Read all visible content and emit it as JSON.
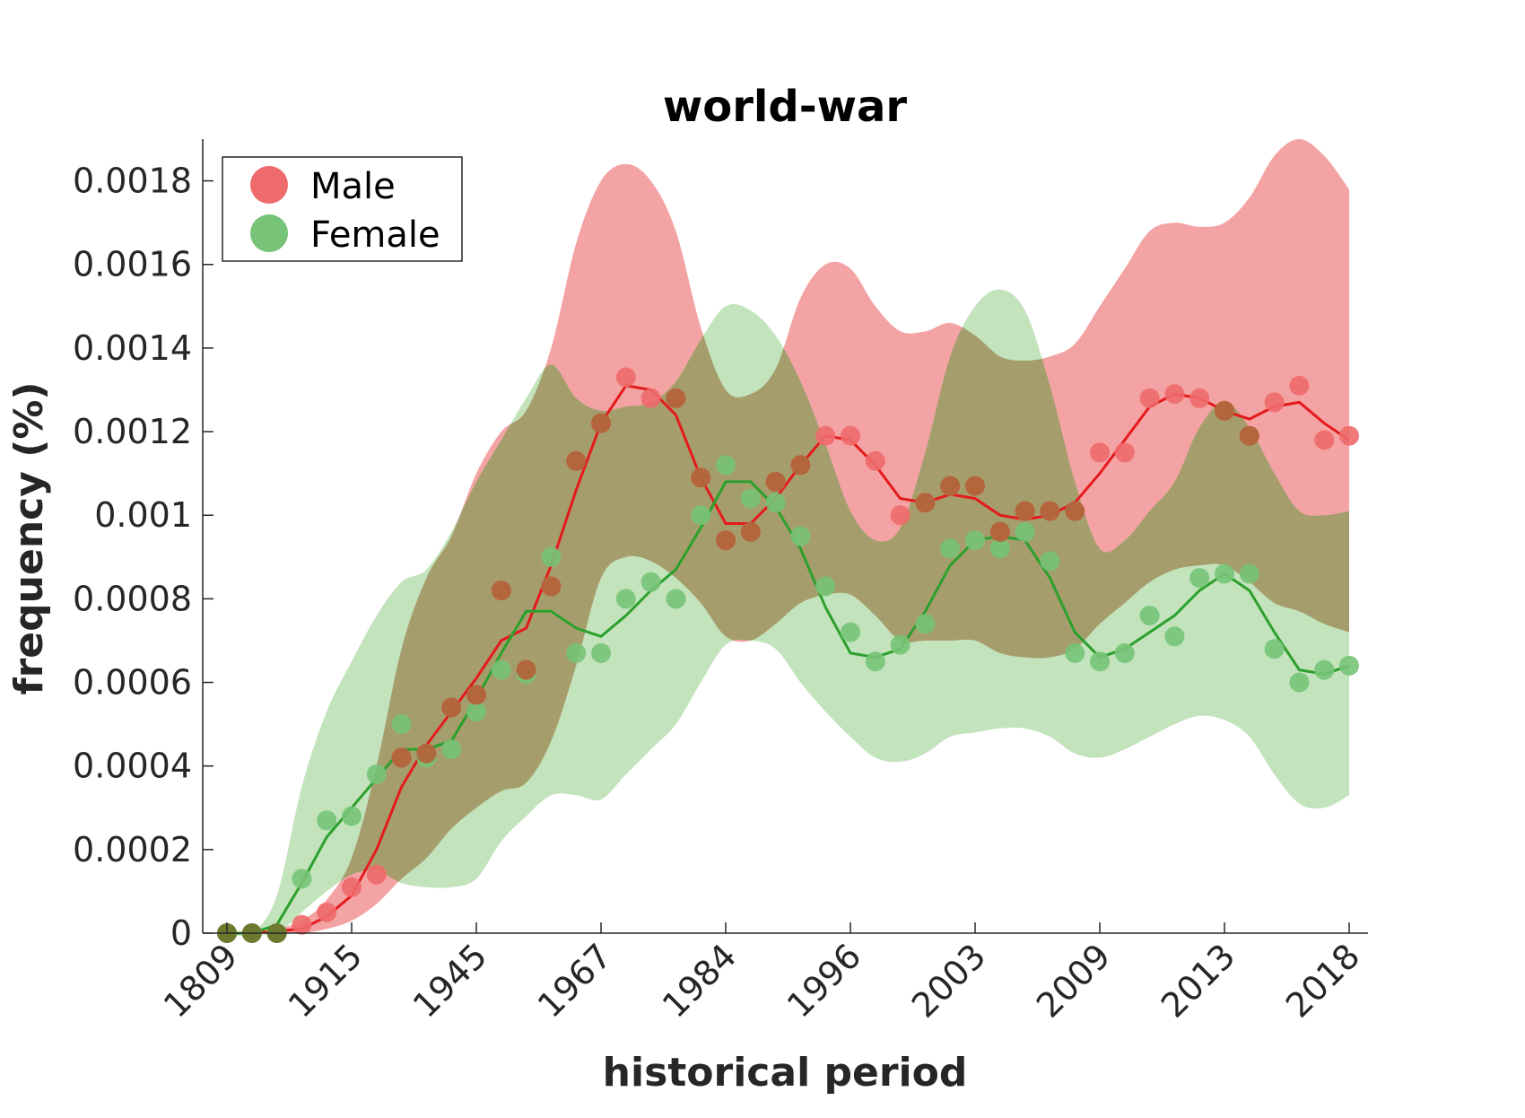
{
  "chart_data": {
    "type": "line",
    "title": "world-war",
    "xlabel": "historical period",
    "ylabel": "frequency (%)",
    "ylim": [
      0,
      0.0019
    ],
    "x_tick_labels": [
      "1809",
      "1915",
      "1945",
      "1967",
      "1984",
      "1996",
      "2003",
      "2009",
      "2013",
      "2018"
    ],
    "y_tick_labels": [
      "0",
      "0.0002",
      "0.0004",
      "0.0006",
      "0.0008",
      "0.001",
      "0.0012",
      "0.0014",
      "0.0016",
      "0.0018"
    ],
    "y_ticks": [
      0,
      0.0002,
      0.0004,
      0.0006,
      0.0008,
      0.001,
      0.0012,
      0.0014,
      0.0016,
      0.0018
    ],
    "x_tick_positions": [
      0,
      5,
      10,
      15,
      20,
      25,
      30,
      35,
      40,
      45
    ],
    "grid": false,
    "legend_position": "top-left",
    "series": [
      {
        "name": "Male",
        "color": "#e41a1c",
        "marker_color": "#ee6a6b",
        "band_color": "#f4a3a4",
        "points": [
          0,
          0,
          0,
          2e-05,
          5e-05,
          0.00011,
          0.00014,
          0.00042,
          0.00043,
          0.00054,
          0.00057,
          0.00082,
          0.00063,
          0.00083,
          0.00113,
          0.00122,
          0.00133,
          0.00128,
          0.00128,
          0.00109,
          0.00094,
          0.00096,
          0.00108,
          0.00112,
          0.00119,
          0.00119,
          0.00113,
          0.001,
          0.00103,
          0.00107,
          0.00107,
          0.00096,
          0.00101,
          0.00101,
          0.00101,
          0.00115,
          0.00115,
          0.00128,
          0.00129,
          0.00128,
          0.00125,
          0.00119,
          0.00127,
          0.00131,
          0.00118,
          0.00119
        ],
        "trend": [
          0,
          0,
          5e-06,
          1e-05,
          4e-05,
          9e-05,
          0.0002,
          0.00035,
          0.00045,
          0.00053,
          0.00061,
          0.0007,
          0.00073,
          0.00088,
          0.00106,
          0.00122,
          0.00131,
          0.0013,
          0.00124,
          0.00109,
          0.00098,
          0.00098,
          0.00104,
          0.00112,
          0.00119,
          0.00118,
          0.00112,
          0.00104,
          0.00103,
          0.00105,
          0.00104,
          0.001,
          0.00099,
          0.001,
          0.00103,
          0.0011,
          0.00118,
          0.00126,
          0.00129,
          0.00128,
          0.00125,
          0.00123,
          0.00126,
          0.00127,
          0.00122,
          0.00118
        ],
        "upper": [
          0,
          0,
          1e-05,
          3e-05,
          8e-05,
          0.00018,
          0.0004,
          0.00068,
          0.00085,
          0.00095,
          0.0011,
          0.0012,
          0.00125,
          0.0014,
          0.00165,
          0.0018,
          0.00184,
          0.0018,
          0.00168,
          0.00145,
          0.0013,
          0.00129,
          0.00135,
          0.00152,
          0.0016,
          0.00159,
          0.0015,
          0.00144,
          0.00144,
          0.00146,
          0.00143,
          0.00138,
          0.00137,
          0.00138,
          0.00141,
          0.0015,
          0.00159,
          0.00168,
          0.0017,
          0.00169,
          0.0017,
          0.00176,
          0.00186,
          0.0019,
          0.00186,
          0.00178
        ],
        "lower": [
          0,
          0,
          0,
          0,
          1e-05,
          3e-05,
          7e-05,
          0.00013,
          0.00018,
          0.00025,
          0.0003,
          0.00034,
          0.00036,
          0.00046,
          0.00064,
          0.00085,
          0.0009,
          0.00089,
          0.00085,
          0.00079,
          0.00071,
          0.0007,
          0.00074,
          0.00079,
          0.00081,
          0.00081,
          0.00076,
          0.0007,
          0.0007,
          0.0007,
          0.0007,
          0.00067,
          0.00066,
          0.00066,
          0.00068,
          0.00074,
          0.00079,
          0.00084,
          0.00087,
          0.00088,
          0.00088,
          0.00084,
          0.00079,
          0.00077,
          0.00074,
          0.00072
        ]
      },
      {
        "name": "Female",
        "color": "#2ca02c",
        "marker_color": "#77c377",
        "band_color": "#aedaa6",
        "points": [
          0,
          0,
          0,
          0.00013,
          0.00027,
          0.00028,
          0.00038,
          0.0005,
          0.00042,
          0.00044,
          0.00053,
          0.00063,
          0.00062,
          0.0009,
          0.00067,
          0.00067,
          0.0008,
          0.00084,
          0.0008,
          0.001,
          0.00112,
          0.00104,
          0.00103,
          0.00095,
          0.00083,
          0.00072,
          0.00065,
          0.00069,
          0.00074,
          0.00092,
          0.00094,
          0.00092,
          0.00096,
          0.00089,
          0.00067,
          0.00065,
          0.00067,
          0.00076,
          0.00071,
          0.00085,
          0.00086,
          0.00086,
          0.00068,
          0.0006,
          0.00063,
          0.00064
        ],
        "trend": [
          0,
          0,
          2e-05,
          0.00012,
          0.00023,
          0.0003,
          0.00037,
          0.00044,
          0.00044,
          0.00046,
          0.00056,
          0.00067,
          0.00077,
          0.00077,
          0.00073,
          0.00071,
          0.00076,
          0.00082,
          0.00087,
          0.00097,
          0.00108,
          0.00108,
          0.00102,
          0.00092,
          0.00078,
          0.00067,
          0.00066,
          0.00068,
          0.00077,
          0.00088,
          0.00094,
          0.00095,
          0.00094,
          0.00085,
          0.00072,
          0.00066,
          0.00068,
          0.00072,
          0.00076,
          0.00082,
          0.00086,
          0.00082,
          0.00072,
          0.00063,
          0.00062,
          0.00064
        ],
        "upper": [
          0,
          0,
          9e-05,
          0.00035,
          0.00053,
          0.00065,
          0.00076,
          0.00084,
          0.00087,
          0.00096,
          0.00108,
          0.00118,
          0.00128,
          0.00136,
          0.00128,
          0.00125,
          0.00126,
          0.00127,
          0.00132,
          0.00142,
          0.0015,
          0.00149,
          0.00143,
          0.00132,
          0.00117,
          0.00101,
          0.00094,
          0.00097,
          0.00115,
          0.00138,
          0.0015,
          0.00154,
          0.00149,
          0.00131,
          0.00108,
          0.00092,
          0.00094,
          0.00101,
          0.00108,
          0.00121,
          0.00127,
          0.00121,
          0.0011,
          0.00101,
          0.001,
          0.00101
        ],
        "lower": [
          0,
          0,
          0,
          5e-05,
          0.0001,
          0.00014,
          0.00015,
          0.00012,
          0.00011,
          0.00011,
          0.00013,
          0.00022,
          0.00028,
          0.00033,
          0.00033,
          0.00032,
          0.00038,
          0.00044,
          0.0005,
          0.0006,
          0.00069,
          0.0007,
          0.00068,
          0.0006,
          0.00053,
          0.00047,
          0.00042,
          0.00041,
          0.00043,
          0.00047,
          0.00048,
          0.00049,
          0.00049,
          0.00047,
          0.00043,
          0.00042,
          0.00044,
          0.00047,
          0.0005,
          0.00052,
          0.00051,
          0.00047,
          0.00038,
          0.00031,
          0.0003,
          0.00033
        ]
      }
    ]
  }
}
